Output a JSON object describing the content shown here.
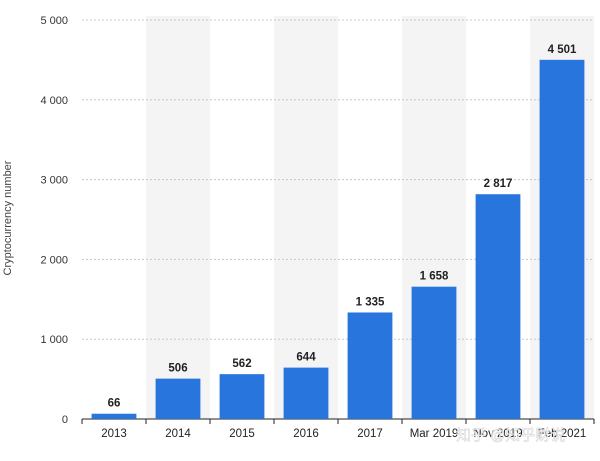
{
  "chart_data": {
    "type": "bar",
    "title": "",
    "xlabel": "",
    "ylabel": "Cryptocurrency number",
    "ylim": [
      0,
      5000
    ],
    "yticks": [
      0,
      1000,
      2000,
      3000,
      4000,
      5000
    ],
    "ytick_labels": [
      "0",
      "1 000",
      "2 000",
      "3 000",
      "4 000",
      "5 000"
    ],
    "categories": [
      "2013",
      "2014",
      "2015",
      "2016",
      "2017",
      "Mar 2019",
      "Nov 2019",
      "Feb 2021"
    ],
    "values": [
      66,
      506,
      562,
      644,
      1335,
      1658,
      2817,
      4501
    ],
    "value_labels": [
      "66",
      "506",
      "562",
      "644",
      "1 335",
      "1 658",
      "2 817",
      "4 501"
    ],
    "bar_color": "#2876dd",
    "band_color": "#f4f4f4",
    "grid": true,
    "watermark": "知乎 @知乎财说"
  }
}
